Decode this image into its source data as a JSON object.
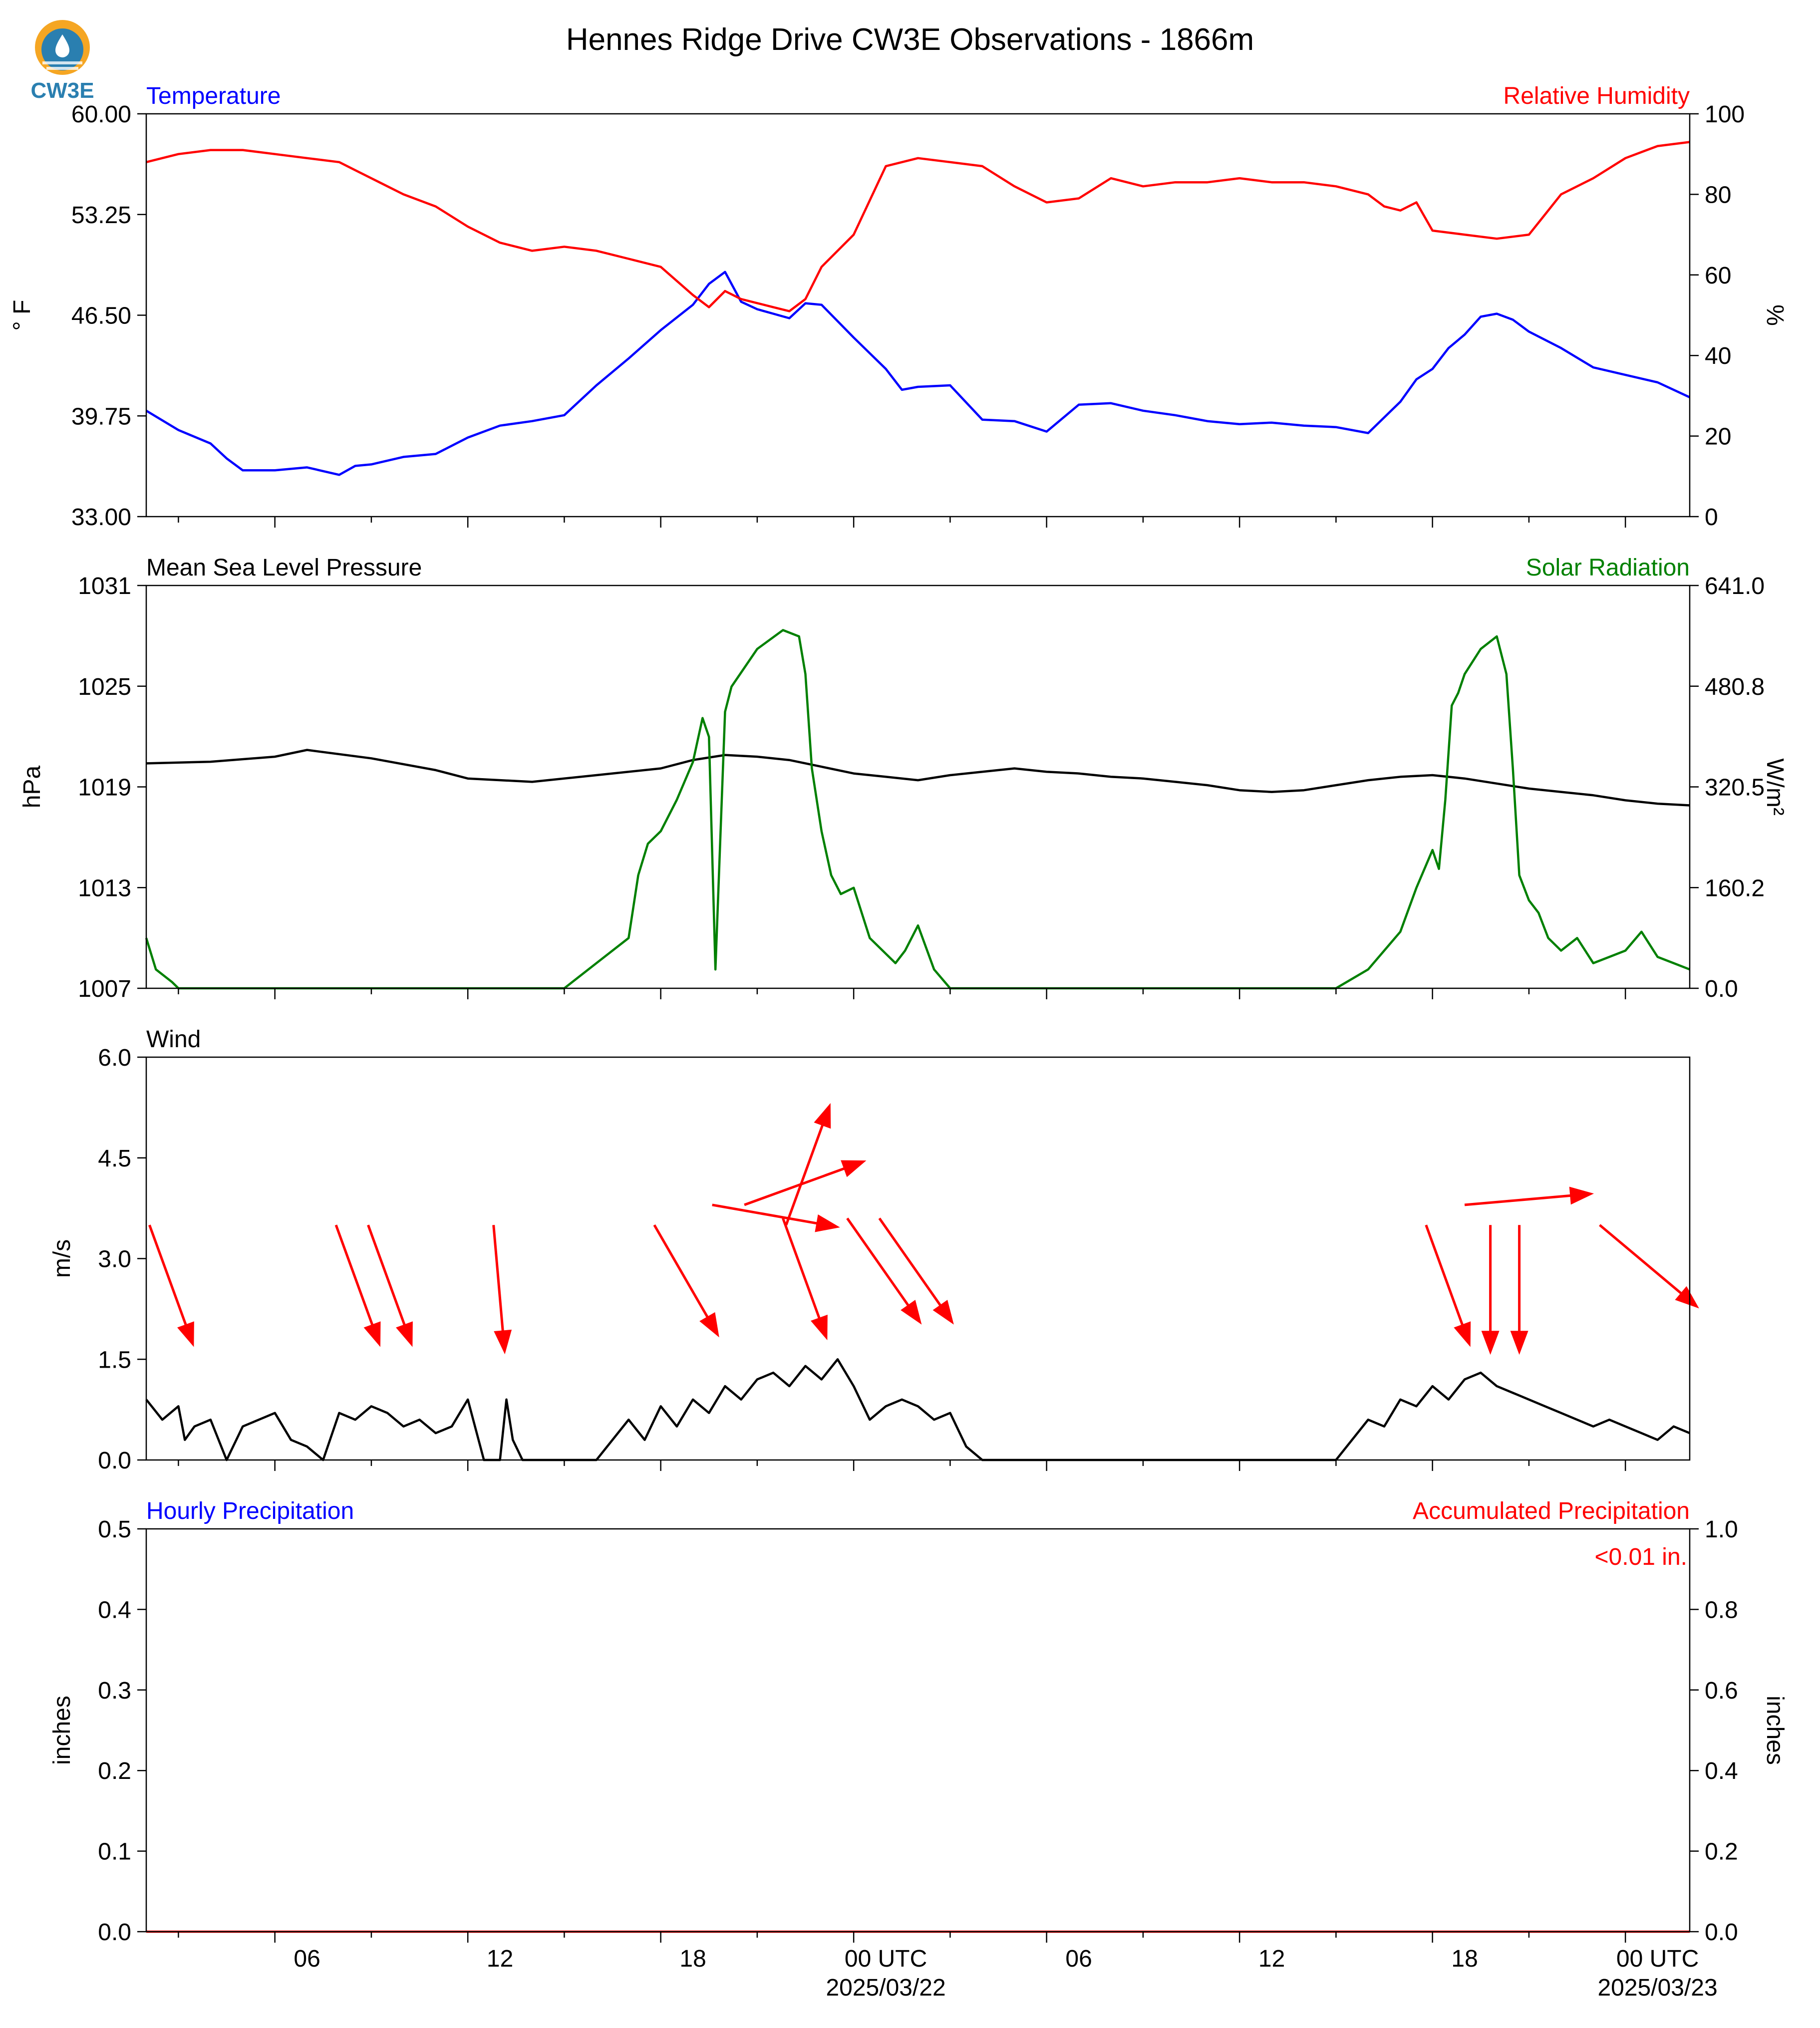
{
  "title": "Hennes Ridge Drive CW3E Observations - 1866m",
  "logo_text": "CW3E",
  "colors": {
    "blue": "#0000ff",
    "red": "#ff0000",
    "green": "#008000",
    "black": "#000000",
    "logo_orange": "#f5a623",
    "logo_blue": "#2a7fb0"
  },
  "x_axis": {
    "start": "2025-03-21T01:00Z",
    "end": "2025-03-23T01:00Z",
    "ticks": [
      "06",
      "12",
      "18",
      "00 UTC",
      "06",
      "12",
      "18",
      "00 UTC"
    ],
    "tick_hours": [
      5,
      11,
      17,
      23,
      29,
      35,
      41,
      47
    ],
    "date_labels": [
      "2025/03/22",
      "2025/03/23"
    ]
  },
  "chart_data": [
    {
      "type": "line",
      "left_label": "Temperature",
      "right_label": "Relative Humidity",
      "ylabel_left": "° F",
      "ylabel_right": "%",
      "ylim_left": [
        33.0,
        60.0
      ],
      "yticks_left": [
        "33.00",
        "39.75",
        "46.50",
        "53.25",
        "60.00"
      ],
      "ylim_right": [
        0,
        100
      ],
      "yticks_right": [
        "0",
        "20",
        "40",
        "60",
        "80",
        "100"
      ],
      "series": [
        {
          "name": "Temperature",
          "axis": "left",
          "color": "#0000ff",
          "x": [
            0,
            1,
            2,
            2.5,
            3,
            4,
            5,
            6,
            6.5,
            7,
            8,
            9,
            10,
            11,
            12,
            13,
            14,
            15,
            16,
            17,
            17.5,
            18,
            18.5,
            19,
            19.5,
            20,
            20.5,
            21,
            22,
            23,
            23.5,
            24,
            25,
            26,
            27,
            28,
            29,
            30,
            31,
            32,
            33,
            34,
            35,
            36,
            37,
            38,
            39,
            39.5,
            40,
            40.5,
            41,
            41.5,
            42,
            42.5,
            43,
            44,
            45,
            46,
            47,
            48
          ],
          "y": [
            40.1,
            38.8,
            37.9,
            36.9,
            36.1,
            36.1,
            36.3,
            35.8,
            36.4,
            36.5,
            37.0,
            37.2,
            38.3,
            39.1,
            39.4,
            39.8,
            41.8,
            43.6,
            45.5,
            47.2,
            48.6,
            49.4,
            47.4,
            46.9,
            46.6,
            46.3,
            47.3,
            47.2,
            45.0,
            42.9,
            41.5,
            41.7,
            41.8,
            39.5,
            39.4,
            38.7,
            40.5,
            40.6,
            40.1,
            39.8,
            39.4,
            39.2,
            39.3,
            39.1,
            39.0,
            38.6,
            40.7,
            42.2,
            42.9,
            44.3,
            45.2,
            46.4,
            46.6,
            46.2,
            45.4,
            44.3,
            43.0,
            42.5,
            42.0,
            41.0
          ]
        },
        {
          "name": "Relative Humidity",
          "axis": "right",
          "color": "#ff0000",
          "x": [
            0,
            1,
            2,
            3,
            4,
            5,
            6,
            6.5,
            7,
            8,
            9,
            10,
            11,
            12,
            13,
            14,
            15,
            16,
            17,
            17.5,
            18,
            18.5,
            19,
            19.5,
            20,
            20.5,
            21,
            22,
            23,
            24,
            25,
            26,
            27,
            28,
            29,
            30,
            31,
            32,
            33,
            34,
            35,
            36,
            37,
            38,
            38.5,
            39,
            39.5,
            40,
            41,
            42,
            43,
            43.5,
            44,
            45,
            46,
            47,
            48
          ],
          "y": [
            88,
            90,
            91,
            91,
            90,
            89,
            88,
            86,
            84,
            80,
            77,
            72,
            68,
            66,
            67,
            66,
            64,
            62,
            55,
            52,
            56,
            54,
            53,
            52,
            51,
            54,
            62,
            70,
            87,
            89,
            88,
            87,
            82,
            78,
            79,
            84,
            82,
            83,
            83,
            84,
            83,
            83,
            82,
            80,
            77,
            76,
            78,
            71,
            70,
            69,
            70,
            75,
            80,
            84,
            89,
            92,
            93
          ]
        }
      ]
    },
    {
      "type": "line",
      "left_label": "Mean Sea Level Pressure",
      "right_label": "Solar Radiation",
      "ylabel_left": "hPa",
      "ylabel_right": "W/m²",
      "ylim_left": [
        1007,
        1031
      ],
      "yticks_left": [
        "1007",
        "1013",
        "1019",
        "1025",
        "1031"
      ],
      "ylim_right": [
        0.0,
        641.0
      ],
      "yticks_right": [
        "0.0",
        "160.2",
        "320.5",
        "480.8",
        "641.0"
      ],
      "series": [
        {
          "name": "Mean Sea Level Pressure",
          "axis": "left",
          "color": "#000000",
          "x": [
            0,
            2,
            4,
            5,
            7,
            9,
            10,
            12,
            14,
            16,
            17,
            18,
            19,
            20,
            21,
            22,
            23,
            24,
            25,
            26,
            27,
            28,
            29,
            30,
            31,
            32,
            33,
            34,
            35,
            36,
            37,
            38,
            39,
            40,
            41,
            42,
            43,
            44,
            45,
            46,
            47,
            48
          ],
          "y": [
            1020.4,
            1020.5,
            1020.8,
            1021.2,
            1020.7,
            1020.0,
            1019.5,
            1019.3,
            1019.7,
            1020.1,
            1020.6,
            1020.9,
            1020.8,
            1020.6,
            1020.2,
            1019.8,
            1019.6,
            1019.4,
            1019.7,
            1019.9,
            1020.1,
            1019.9,
            1019.8,
            1019.6,
            1019.5,
            1019.3,
            1019.1,
            1018.8,
            1018.7,
            1018.8,
            1019.1,
            1019.4,
            1019.6,
            1019.7,
            1019.5,
            1019.2,
            1018.9,
            1018.7,
            1018.5,
            1018.2,
            1018.0,
            1017.9
          ]
        },
        {
          "name": "Solar Radiation",
          "axis": "right",
          "color": "#008000",
          "x": [
            0,
            0.3,
            0.8,
            1,
            13,
            14,
            15,
            15.3,
            15.6,
            16,
            16.5,
            17,
            17.3,
            17.5,
            17.7,
            18,
            18.2,
            19,
            19.8,
            20.3,
            20.5,
            20.7,
            21,
            21.3,
            21.6,
            22,
            22.5,
            23,
            23.3,
            23.6,
            24,
            24.5,
            25,
            37,
            38,
            39,
            39.5,
            40,
            40.2,
            40.4,
            40.6,
            40.8,
            41,
            41.5,
            42,
            42.3,
            42.5,
            42.7,
            43,
            43.3,
            43.6,
            44,
            44.5,
            45,
            45.5,
            46,
            46.5,
            47,
            47.5,
            48
          ],
          "y": [
            80,
            30,
            10,
            0,
            0,
            40,
            80,
            180,
            230,
            250,
            300,
            360,
            430,
            400,
            30,
            440,
            480,
            540,
            570,
            560,
            500,
            350,
            250,
            180,
            150,
            160,
            80,
            55,
            40,
            60,
            100,
            30,
            0,
            0,
            30,
            90,
            160,
            220,
            190,
            300,
            450,
            470,
            500,
            540,
            560,
            500,
            350,
            180,
            140,
            120,
            80,
            60,
            80,
            40,
            50,
            60,
            90,
            50,
            40,
            30
          ]
        }
      ]
    },
    {
      "type": "line",
      "left_label": "Wind",
      "ylabel_left": "m/s",
      "ylim_left": [
        0.0,
        6.0
      ],
      "yticks_left": [
        "0.0",
        "1.5",
        "3.0",
        "4.5",
        "6.0"
      ],
      "series": [
        {
          "name": "Wind",
          "axis": "left",
          "color": "#000000",
          "x": [
            0,
            0.5,
            1,
            1.2,
            1.5,
            2,
            2.5,
            3,
            3.5,
            4,
            4.5,
            5,
            5.5,
            6,
            6.5,
            7,
            7.5,
            8,
            8.5,
            9,
            9.5,
            10,
            10.5,
            11,
            11.2,
            11.4,
            11.7,
            12,
            12.5,
            13,
            14,
            15,
            15.5,
            16,
            16.5,
            17,
            17.5,
            18,
            18.5,
            19,
            19.5,
            20,
            20.5,
            21,
            21.5,
            22,
            22.5,
            23,
            23.5,
            24,
            24.5,
            25,
            25.5,
            26,
            26.5,
            27,
            28,
            28.5,
            29,
            30,
            31,
            32,
            33,
            34,
            35,
            36,
            37,
            38,
            38.5,
            39,
            39.5,
            40,
            40.5,
            41,
            41.5,
            42,
            42.5,
            43,
            43.5,
            44,
            44.5,
            45,
            45.5,
            46,
            46.5,
            47,
            47.5,
            48
          ],
          "y": [
            0.9,
            0.6,
            0.8,
            0.3,
            0.5,
            0.6,
            0.0,
            0.5,
            0.6,
            0.7,
            0.3,
            0.2,
            0.0,
            0.7,
            0.6,
            0.8,
            0.7,
            0.5,
            0.6,
            0.4,
            0.5,
            0.9,
            0.0,
            0.0,
            0.9,
            0.3,
            0.0,
            0.0,
            0.0,
            0.0,
            0.0,
            0.6,
            0.3,
            0.8,
            0.5,
            0.9,
            0.7,
            1.1,
            0.9,
            1.2,
            1.3,
            1.1,
            1.4,
            1.2,
            1.5,
            1.1,
            0.6,
            0.8,
            0.9,
            0.8,
            0.6,
            0.7,
            0.2,
            0.0,
            0.0,
            0.0,
            0.0,
            0.0,
            0.0,
            0.0,
            0.0,
            0.0,
            0.0,
            0.0,
            0.0,
            0.0,
            0.0,
            0.6,
            0.5,
            0.9,
            0.8,
            1.1,
            0.9,
            1.2,
            1.3,
            1.1,
            1.0,
            0.9,
            0.8,
            0.7,
            0.6,
            0.5,
            0.6,
            0.5,
            0.4,
            0.3,
            0.5,
            0.4
          ]
        }
      ],
      "arrows": [
        {
          "hour": 0.1,
          "speed": 3.5,
          "dir_deg": 340
        },
        {
          "hour": 5.9,
          "speed": 3.5,
          "dir_deg": 340
        },
        {
          "hour": 6.9,
          "speed": 3.5,
          "dir_deg": 340
        },
        {
          "hour": 10.8,
          "speed": 3.5,
          "dir_deg": 355
        },
        {
          "hour": 15.8,
          "speed": 3.5,
          "dir_deg": 330
        },
        {
          "hour": 17.6,
          "speed": 3.8,
          "dir_deg": 280
        },
        {
          "hour": 18.6,
          "speed": 3.8,
          "dir_deg": 250
        },
        {
          "hour": 19.9,
          "speed": 3.5,
          "dir_deg": 200
        },
        {
          "hour": 19.8,
          "speed": 3.6,
          "dir_deg": 340
        },
        {
          "hour": 21.8,
          "speed": 3.6,
          "dir_deg": 325
        },
        {
          "hour": 22.8,
          "speed": 3.6,
          "dir_deg": 325
        },
        {
          "hour": 39.8,
          "speed": 3.5,
          "dir_deg": 340
        },
        {
          "hour": 41.0,
          "speed": 3.8,
          "dir_deg": 265
        },
        {
          "hour": 41.8,
          "speed": 3.5,
          "dir_deg": 0
        },
        {
          "hour": 42.7,
          "speed": 3.5,
          "dir_deg": 0
        },
        {
          "hour": 45.2,
          "speed": 3.5,
          "dir_deg": 310
        }
      ]
    },
    {
      "type": "bar",
      "left_label": "Hourly Precipitation",
      "right_label": "Accumulated Precipitation",
      "ylabel_left": "inches",
      "ylabel_right": "inches",
      "ylim_left": [
        0.0,
        0.5
      ],
      "yticks_left": [
        "0.0",
        "0.1",
        "0.2",
        "0.3",
        "0.4",
        "0.5"
      ],
      "ylim_right": [
        0.0,
        1.0
      ],
      "yticks_right": [
        "0.0",
        "0.2",
        "0.4",
        "0.6",
        "0.8",
        "1.0"
      ],
      "annotation": "<0.01 in.",
      "series": [
        {
          "name": "Accumulated Precipitation",
          "axis": "right",
          "color": "#ff0000",
          "x": [
            0,
            48
          ],
          "y": [
            0.0,
            0.0
          ]
        }
      ]
    }
  ]
}
